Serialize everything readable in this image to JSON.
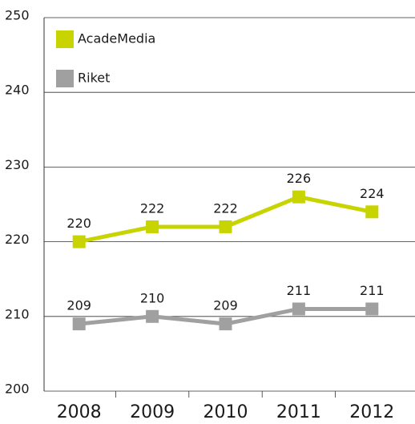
{
  "chart_data": {
    "type": "line",
    "categories": [
      "2008",
      "2009",
      "2010",
      "2011",
      "2012"
    ],
    "series": [
      {
        "name": "AcadeMedia",
        "color": "#c8d400",
        "values": [
          220,
          222,
          222,
          226,
          224
        ]
      },
      {
        "name": "Riket",
        "color": "#a0a0a0",
        "values": [
          209,
          210,
          209,
          211,
          211
        ]
      }
    ],
    "ylim": [
      200,
      250
    ],
    "yticks": [
      200,
      210,
      220,
      230,
      240,
      250
    ],
    "grid": true,
    "legend": "top-left"
  }
}
